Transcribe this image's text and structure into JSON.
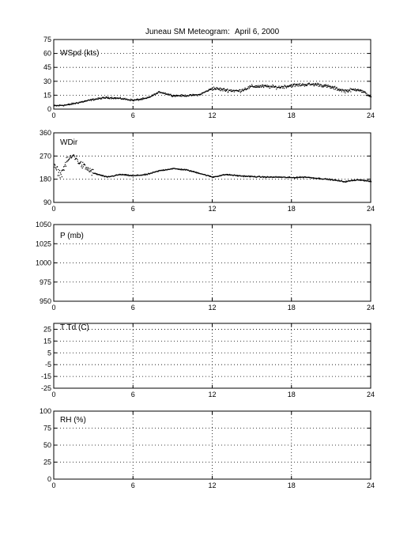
{
  "title": "Juneau SM Meteogram:",
  "date": "April  6, 2000",
  "chart_data": [
    {
      "type": "scatter",
      "label": "WSpd (kts)",
      "xlim": [
        0,
        24
      ],
      "ylim": [
        0,
        75
      ],
      "xticks": [
        0,
        6,
        12,
        18,
        24
      ],
      "yticks": [
        0,
        15,
        30,
        45,
        60,
        75
      ],
      "grid": true,
      "trend": [
        {
          "x": 0,
          "y": 4
        },
        {
          "x": 1,
          "y": 5
        },
        {
          "x": 2,
          "y": 8
        },
        {
          "x": 3,
          "y": 11
        },
        {
          "x": 4,
          "y": 13
        },
        {
          "x": 5,
          "y": 12
        },
        {
          "x": 6,
          "y": 10
        },
        {
          "x": 7,
          "y": 12
        },
        {
          "x": 8,
          "y": 19
        },
        {
          "x": 9,
          "y": 15
        },
        {
          "x": 10,
          "y": 15
        },
        {
          "x": 11,
          "y": 16
        },
        {
          "x": 12,
          "y": 23
        },
        {
          "x": 13,
          "y": 21
        },
        {
          "x": 14,
          "y": 20
        },
        {
          "x": 15,
          "y": 25
        },
        {
          "x": 16,
          "y": 25
        },
        {
          "x": 17,
          "y": 24
        },
        {
          "x": 18,
          "y": 26
        },
        {
          "x": 19,
          "y": 27
        },
        {
          "x": 20,
          "y": 27
        },
        {
          "x": 21,
          "y": 24
        },
        {
          "x": 22,
          "y": 20
        },
        {
          "x": 23,
          "y": 22
        },
        {
          "x": 24,
          "y": 14
        }
      ]
    },
    {
      "type": "scatter",
      "label": "WDir",
      "xlim": [
        0,
        24
      ],
      "ylim": [
        90,
        360
      ],
      "xticks": [
        0,
        6,
        12,
        18,
        24
      ],
      "yticks": [
        90,
        180,
        270,
        360
      ],
      "grid": true,
      "trend": [
        {
          "x": 0,
          "y": 230
        },
        {
          "x": 0.5,
          "y": 200
        },
        {
          "x": 1,
          "y": 255
        },
        {
          "x": 1.5,
          "y": 275
        },
        {
          "x": 2,
          "y": 240
        },
        {
          "x": 3,
          "y": 205
        },
        {
          "x": 4,
          "y": 190
        },
        {
          "x": 5,
          "y": 200
        },
        {
          "x": 6,
          "y": 195
        },
        {
          "x": 7,
          "y": 200
        },
        {
          "x": 8,
          "y": 215
        },
        {
          "x": 9,
          "y": 223
        },
        {
          "x": 10,
          "y": 218
        },
        {
          "x": 11,
          "y": 205
        },
        {
          "x": 12,
          "y": 190
        },
        {
          "x": 13,
          "y": 200
        },
        {
          "x": 14,
          "y": 195
        },
        {
          "x": 15,
          "y": 192
        },
        {
          "x": 16,
          "y": 190
        },
        {
          "x": 17,
          "y": 190
        },
        {
          "x": 18,
          "y": 188
        },
        {
          "x": 19,
          "y": 190
        },
        {
          "x": 20,
          "y": 185
        },
        {
          "x": 21,
          "y": 180
        },
        {
          "x": 22,
          "y": 172
        },
        {
          "x": 23,
          "y": 180
        },
        {
          "x": 24,
          "y": 173
        }
      ]
    },
    {
      "type": "scatter",
      "label": "P (mb)",
      "xlim": [
        0,
        24
      ],
      "ylim": [
        950,
        1050
      ],
      "xticks": [
        0,
        6,
        12,
        18,
        24
      ],
      "yticks": [
        950,
        975,
        1000,
        1025,
        1050
      ],
      "grid": true,
      "trend": []
    },
    {
      "type": "scatter",
      "label": "T Td (C)",
      "xlim": [
        0,
        24
      ],
      "ylim": [
        -25,
        30
      ],
      "xticks": [
        0,
        6,
        12,
        18,
        24
      ],
      "yticks": [
        -25,
        -15,
        -5,
        5,
        15,
        25
      ],
      "grid": true,
      "trend": []
    },
    {
      "type": "scatter",
      "label": "RH (%)",
      "xlim": [
        0,
        24
      ],
      "ylim": [
        0,
        100
      ],
      "xticks": [
        0,
        6,
        12,
        18,
        24
      ],
      "yticks": [
        0,
        25,
        50,
        75,
        100
      ],
      "grid": true,
      "trend": []
    }
  ]
}
